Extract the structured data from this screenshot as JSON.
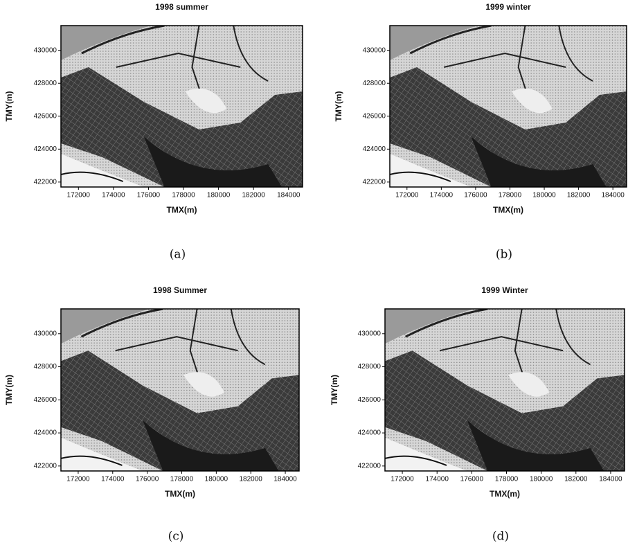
{
  "panels": [
    {
      "title": "1998 summer",
      "x_label": "TMX(m)",
      "y_label": "TMY(m)",
      "caption": "(a)",
      "xlim": [
        171000,
        184800
      ],
      "ylim": [
        421700,
        431500
      ],
      "xticks": [
        172000,
        174000,
        176000,
        178000,
        180000,
        182000,
        184000
      ],
      "yticks": [
        422000,
        424000,
        426000,
        428000,
        430000
      ]
    },
    {
      "title": "1999 winter",
      "x_label": "TMX(m)",
      "y_label": "TMY(m)",
      "caption": "(b)",
      "xlim": [
        171000,
        184800
      ],
      "ylim": [
        421700,
        431500
      ],
      "xticks": [
        172000,
        174000,
        176000,
        178000,
        180000,
        182000,
        184000
      ],
      "yticks": [
        422000,
        424000,
        426000,
        428000,
        430000
      ]
    },
    {
      "title": "1998 Summer",
      "x_label": "TMX(m)",
      "y_label": "TMY(m)",
      "caption": "(c)",
      "xlim": [
        171000,
        184800
      ],
      "ylim": [
        421700,
        431500
      ],
      "xticks": [
        172000,
        174000,
        176000,
        178000,
        180000,
        182000,
        184000
      ],
      "yticks": [
        422000,
        424000,
        426000,
        428000,
        430000
      ]
    },
    {
      "title": "1999 Winter",
      "x_label": "TMX(m)",
      "y_label": "TMY(m)",
      "caption": "(d)",
      "xlim": [
        171000,
        184800
      ],
      "ylim": [
        421700,
        431500
      ],
      "xticks": [
        172000,
        174000,
        176000,
        178000,
        180000,
        182000,
        184000
      ],
      "yticks": [
        422000,
        424000,
        426000,
        428000,
        430000
      ]
    }
  ]
}
